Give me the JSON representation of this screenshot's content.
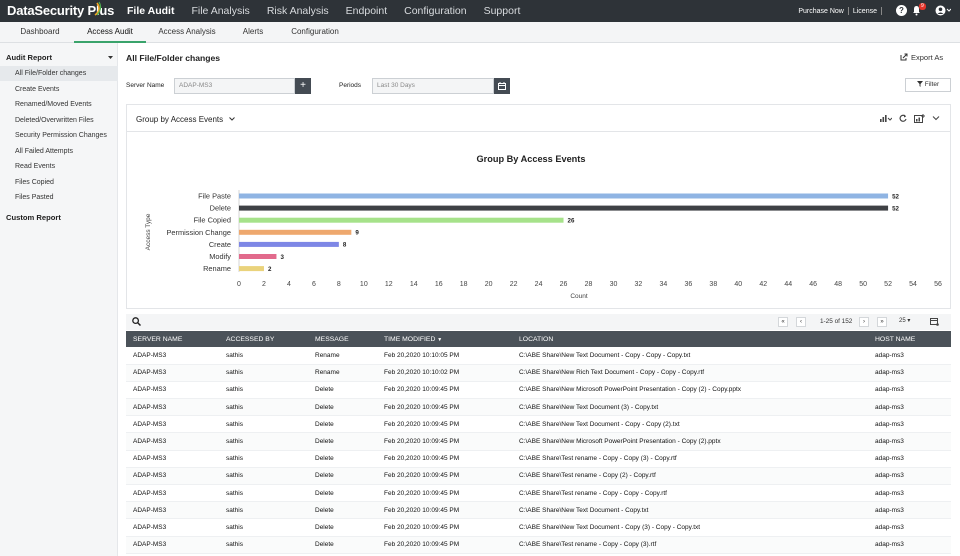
{
  "app": {
    "name": "DataSecurity Plus"
  },
  "topnav": [
    "File Audit",
    "File Analysis",
    "Risk Analysis",
    "Endpoint",
    "Configuration",
    "Support"
  ],
  "topright": {
    "purchase": "Purchase Now",
    "license": "License",
    "help": "?",
    "notif_count": "9"
  },
  "subtabs": [
    "Dashboard",
    "Access Audit",
    "Access Analysis",
    "Alerts",
    "Configuration"
  ],
  "sidebar": {
    "heading": "Audit Report",
    "items": [
      "All File/Folder changes",
      "Create Events",
      "Renamed/Moved Events",
      "Deleted/Overwritten Files",
      "Security Permission Changes",
      "All Failed Attempts",
      "Read Events",
      "Files Copied",
      "Files Pasted"
    ],
    "custom": "Custom Report"
  },
  "page": {
    "title": "All File/Folder changes",
    "export": "Export As"
  },
  "filters": {
    "server_label": "Server Name",
    "server_value": "ADAP-MS3",
    "period_label": "Periods",
    "period_value": "Last 30 Days",
    "filter_btn": "Filter"
  },
  "chart_header": {
    "group_by": "Group by Access Events"
  },
  "chart_data": {
    "type": "bar",
    "orientation": "horizontal",
    "title": "Group By Access Events",
    "xlabel": "Count",
    "ylabel": "Access Type",
    "categories": [
      "File Paste",
      "Delete",
      "File Copied",
      "Permission Change",
      "Create",
      "Modify",
      "Rename"
    ],
    "values": [
      52,
      52,
      26,
      9,
      8,
      3,
      2
    ],
    "colors": [
      "#8fb4e3",
      "#3f4145",
      "#a6e28a",
      "#eea86e",
      "#7e87e6",
      "#e26a8c",
      "#ead37c"
    ],
    "xlim": [
      0,
      56
    ],
    "xticks": [
      0,
      2,
      4,
      6,
      8,
      10,
      12,
      14,
      16,
      18,
      20,
      22,
      24,
      26,
      28,
      30,
      32,
      34,
      36,
      38,
      40,
      42,
      44,
      46,
      48,
      50,
      52,
      54,
      56
    ]
  },
  "grid": {
    "pagination": "1-25 of 152",
    "page_size": "25",
    "columns": [
      "SERVER NAME",
      "ACCESSED BY",
      "MESSAGE",
      "TIME MODIFIED",
      "LOCATION",
      "HOST NAME"
    ],
    "rows": [
      [
        "ADAP-MS3",
        "sathis",
        "Rename",
        "Feb 20,2020 10:10:05 PM",
        "C:\\ABE Share\\New Text Document - Copy - Copy - Copy.txt",
        "adap-ms3"
      ],
      [
        "ADAP-MS3",
        "sathis",
        "Rename",
        "Feb 20,2020 10:10:02 PM",
        "C:\\ABE Share\\New Rich Text Document - Copy - Copy - Copy.rtf",
        "adap-ms3"
      ],
      [
        "ADAP-MS3",
        "sathis",
        "Delete",
        "Feb 20,2020 10:09:45 PM",
        "C:\\ABE Share\\New Microsoft PowerPoint Presentation - Copy (2) - Copy.pptx",
        "adap-ms3"
      ],
      [
        "ADAP-MS3",
        "sathis",
        "Delete",
        "Feb 20,2020 10:09:45 PM",
        "C:\\ABE Share\\New Text Document (3) - Copy.txt",
        "adap-ms3"
      ],
      [
        "ADAP-MS3",
        "sathis",
        "Delete",
        "Feb 20,2020 10:09:45 PM",
        "C:\\ABE Share\\New Text Document - Copy - Copy (2).txt",
        "adap-ms3"
      ],
      [
        "ADAP-MS3",
        "sathis",
        "Delete",
        "Feb 20,2020 10:09:45 PM",
        "C:\\ABE Share\\New Microsoft PowerPoint Presentation - Copy (2).pptx",
        "adap-ms3"
      ],
      [
        "ADAP-MS3",
        "sathis",
        "Delete",
        "Feb 20,2020 10:09:45 PM",
        "C:\\ABE Share\\Test rename - Copy - Copy (3) - Copy.rtf",
        "adap-ms3"
      ],
      [
        "ADAP-MS3",
        "sathis",
        "Delete",
        "Feb 20,2020 10:09:45 PM",
        "C:\\ABE Share\\Test rename - Copy (2) - Copy.rtf",
        "adap-ms3"
      ],
      [
        "ADAP-MS3",
        "sathis",
        "Delete",
        "Feb 20,2020 10:09:45 PM",
        "C:\\ABE Share\\Test rename - Copy - Copy - Copy.rtf",
        "adap-ms3"
      ],
      [
        "ADAP-MS3",
        "sathis",
        "Delete",
        "Feb 20,2020 10:09:45 PM",
        "C:\\ABE Share\\New Text Document - Copy.txt",
        "adap-ms3"
      ],
      [
        "ADAP-MS3",
        "sathis",
        "Delete",
        "Feb 20,2020 10:09:45 PM",
        "C:\\ABE Share\\New Text Document - Copy (3) - Copy - Copy.txt",
        "adap-ms3"
      ],
      [
        "ADAP-MS3",
        "sathis",
        "Delete",
        "Feb 20,2020 10:09:45 PM",
        "C:\\ABE Share\\Test rename - Copy - Copy (3).rtf",
        "adap-ms3"
      ]
    ]
  }
}
